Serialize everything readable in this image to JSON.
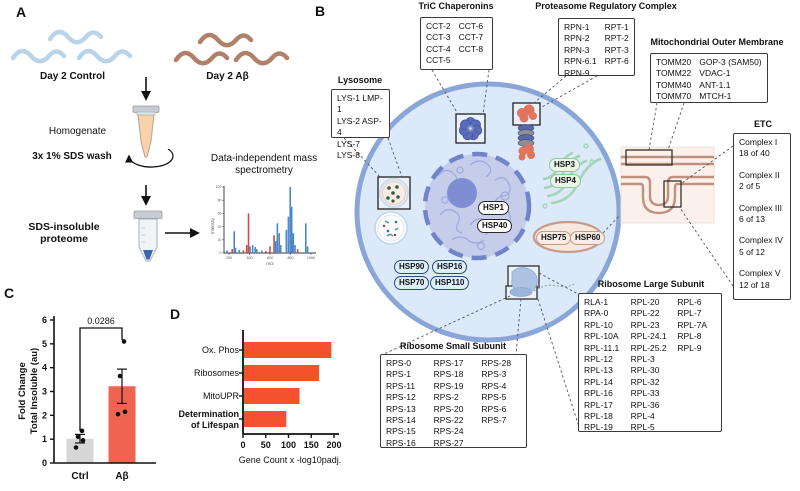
{
  "figure_labels": {
    "a": "A",
    "b": "B",
    "c": "C",
    "d": "D"
  },
  "panel_a": {
    "control_label": "Day 2 Control",
    "ab_label": "Day 2 Aβ",
    "homogenate": "Homogenate",
    "sds_wash": "3x 1% SDS wash",
    "insoluble": "SDS-insoluble proteome",
    "ms_title": "Data-independent mass spectrometry",
    "worm_colors": {
      "control": "#b9d4e9",
      "ab": "#b08068"
    }
  },
  "panel_b": {
    "boxes": {
      "tric": {
        "title": "TriC Chaperonins",
        "columns": [
          [
            "CCT-2",
            "CCT-3",
            "CCT-4",
            "CCT-5"
          ],
          [
            "CCT-6",
            "CCT-7",
            "CCT-8"
          ]
        ]
      },
      "proteasome": {
        "title": "Proteasome Regulatory Complex",
        "columns": [
          [
            "RPN-1",
            "RPN-2",
            "RPN-3",
            "RPN-6.1",
            "RPN-9"
          ],
          [
            "RPT-1",
            "RPT-2",
            "RPT-3",
            "RPT-6"
          ]
        ]
      },
      "mom": {
        "title": "Mitochondrial Outer Membrane",
        "columns": [
          [
            "TOMM20",
            "TOMM22",
            "TOMM40",
            "TOMM70"
          ],
          [
            "GOP-3 (SAM50)",
            "VDAC-1",
            "ANT-1.1",
            "MTCH-1"
          ]
        ]
      },
      "etc": {
        "title": "ETC",
        "entries": [
          {
            "name": "Complex I",
            "count": "18 of 40"
          },
          {
            "name": "Complex II",
            "count": "2 of 5"
          },
          {
            "name": "Complex III",
            "count": "6 of 13"
          },
          {
            "name": "Complex IV",
            "count": "5 of 12"
          },
          {
            "name": "Complex V",
            "count": "12 of 18"
          }
        ]
      },
      "lysosome": {
        "title": "Lysosome",
        "columns": [
          [
            "LYS-1 LMP-1",
            "LYS-2 ASP-4",
            "LYS-7",
            "LYS-8"
          ]
        ]
      },
      "rps": {
        "title": "Ribosome Small Subunit",
        "columns": [
          [
            "RPS-0",
            "RPS-1",
            "RPS-11",
            "RPS-12",
            "RPS-13",
            "RPS-14",
            "RPS-15",
            "RPS-16"
          ],
          [
            "RPS-17",
            "RPS-18",
            "RPS-19",
            "RPS-2",
            "RPS-20",
            "RPS-22",
            "RPS-24",
            "RPS-27"
          ],
          [
            "RPS-28",
            "RPS-3",
            "RPS-4",
            "RPS-5",
            "RPS-6",
            "RPS-7"
          ]
        ]
      },
      "rpl": {
        "title": "Ribosome Large Subunit",
        "columns": [
          [
            "RLA-1",
            "RPA-0",
            "RPL-10",
            "RPL-10A",
            "RPL-11.1",
            "RPL-12",
            "RPL-13",
            "RPL-14",
            "RPL-16",
            "RPL-17",
            "RPL-18",
            "RPL-19"
          ],
          [
            "RPL-20",
            "RPL-22",
            "RPL-23",
            "RPL-24.1",
            "RPL-25.2",
            "RPL-3",
            "RPL-30",
            "RPL-32",
            "RPL-33",
            "RPL-36",
            "RPL-4",
            "RPL-5"
          ],
          [
            "RPL-6",
            "RPL-7",
            "RPL-7A",
            "RPL-8",
            "RPL-9"
          ]
        ]
      }
    },
    "hsp_pills": [
      {
        "label": "HSP1",
        "theme": "dark"
      },
      {
        "label": "HSP40",
        "theme": "dark"
      },
      {
        "label": "HSP3",
        "theme": "green"
      },
      {
        "label": "HSP4",
        "theme": "green"
      },
      {
        "label": "HSP75",
        "theme": "brown"
      },
      {
        "label": "HSP60",
        "theme": "brown"
      },
      {
        "label": "HSP90",
        "theme": "blue"
      },
      {
        "label": "HSP16",
        "theme": "blue"
      },
      {
        "label": "HSP70",
        "theme": "blue"
      },
      {
        "label": "HSP110",
        "theme": "blue"
      }
    ]
  },
  "chart_data": [
    {
      "type": "bar",
      "panel": "C",
      "categories": [
        "Ctrl",
        "Aβ"
      ],
      "values": [
        1.02,
        3.22
      ],
      "errors": [
        0.18,
        0.72
      ],
      "points": [
        [
          0.65,
          0.95,
          1.1,
          1.35
        ],
        [
          2.05,
          2.15,
          3.65,
          5.1
        ]
      ],
      "bar_colors": [
        "#d6d6d6",
        "#ef6350"
      ],
      "p_value": "0.0286",
      "ylabel_lines": [
        "Fold Change",
        "Total Insoluble (au)"
      ],
      "ylim": [
        0,
        6
      ],
      "yticks": [
        0,
        1,
        2,
        3,
        4,
        5,
        6
      ]
    },
    {
      "type": "bar",
      "panel": "D",
      "orientation": "horizontal",
      "categories": [
        "Ox. Phos",
        "Ribosomes",
        "MitoUPR",
        "Determination\nof Lifespan"
      ],
      "bold_categories": [
        false,
        false,
        false,
        true
      ],
      "values": [
        192,
        165,
        122,
        93
      ],
      "bar_color": "#f4512e",
      "xlabel": "Gene Count x -log10padj.",
      "xlim": [
        0,
        200
      ],
      "xticks": [
        0,
        50,
        100,
        150,
        200
      ]
    },
    {
      "type": "spectrum",
      "panel": "A-inset",
      "ylabel": "Intensity",
      "xlabel": "m/z",
      "yticks": [
        0,
        20,
        40,
        60,
        80,
        100
      ],
      "xticks": [
        200,
        400,
        600,
        800,
        1000
      ],
      "series_colors": {
        "blue": "#4a86c8",
        "red": "#cc4b44"
      },
      "peaks": [
        {
          "mz": 180,
          "i": 4,
          "c": "blue"
        },
        {
          "mz": 230,
          "i": 6,
          "c": "red"
        },
        {
          "mz": 250,
          "i": 33,
          "c": "blue"
        },
        {
          "mz": 262,
          "i": 8,
          "c": "blue"
        },
        {
          "mz": 300,
          "i": 5,
          "c": "blue"
        },
        {
          "mz": 340,
          "i": 4,
          "c": "red"
        },
        {
          "mz": 372,
          "i": 12,
          "c": "red"
        },
        {
          "mz": 390,
          "i": 60,
          "c": "red"
        },
        {
          "mz": 405,
          "i": 10,
          "c": "blue"
        },
        {
          "mz": 430,
          "i": 12,
          "c": "blue"
        },
        {
          "mz": 455,
          "i": 9,
          "c": "blue"
        },
        {
          "mz": 470,
          "i": 6,
          "c": "blue"
        },
        {
          "mz": 520,
          "i": 4,
          "c": "blue"
        },
        {
          "mz": 560,
          "i": 3,
          "c": "red"
        },
        {
          "mz": 600,
          "i": 10,
          "c": "red"
        },
        {
          "mz": 640,
          "i": 27,
          "c": "red"
        },
        {
          "mz": 655,
          "i": 18,
          "c": "blue"
        },
        {
          "mz": 672,
          "i": 45,
          "c": "blue"
        },
        {
          "mz": 690,
          "i": 30,
          "c": "blue"
        },
        {
          "mz": 705,
          "i": 12,
          "c": "blue"
        },
        {
          "mz": 760,
          "i": 35,
          "c": "blue"
        },
        {
          "mz": 780,
          "i": 55,
          "c": "blue"
        },
        {
          "mz": 798,
          "i": 100,
          "c": "blue"
        },
        {
          "mz": 812,
          "i": 70,
          "c": "blue"
        },
        {
          "mz": 828,
          "i": 30,
          "c": "blue"
        },
        {
          "mz": 845,
          "i": 12,
          "c": "blue"
        },
        {
          "mz": 870,
          "i": 6,
          "c": "red"
        },
        {
          "mz": 950,
          "i": 45,
          "c": "blue"
        },
        {
          "mz": 968,
          "i": 10,
          "c": "blue"
        }
      ]
    }
  ]
}
